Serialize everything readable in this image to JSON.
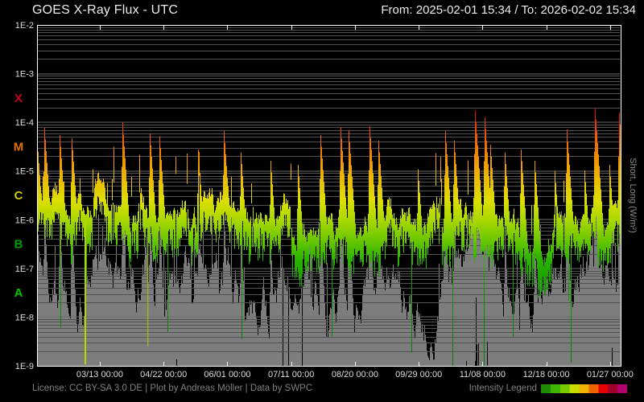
{
  "header": {
    "title": "GOES X-Ray Flux - UTC",
    "range": "From: 2025-02-01 15:34  /  To: 2026-02-02 15:34"
  },
  "right_axis_label": "Short, Long (W/m²)",
  "footer": {
    "license": "License: CC BY-SA 3.0 DE | Plot by Andreas Möller | Data by SWPC",
    "legend_label": "Intensity Legend",
    "legend_colors": [
      "#1e8c00",
      "#3cb400",
      "#78c800",
      "#c8dc00",
      "#f0b400",
      "#f06400",
      "#e60000",
      "#a00028",
      "#b4006e"
    ]
  },
  "chart_data": {
    "type": "area",
    "title": "GOES X-Ray Flux - UTC",
    "x_range_utc": [
      "2025-02-01 15:34",
      "2026-02-02 15:34"
    ],
    "y_scale": "log10",
    "ylim": [
      1e-09,
      0.01
    ],
    "plot_bg": "#000000",
    "frame_color": "#ffffff",
    "grid": {
      "minor_color": "#525252",
      "major_color": "#6e6e6e"
    },
    "y_ticks": {
      "labels": [
        "1E-2",
        "1E-3",
        "1E-4",
        "1E-5",
        "1E-6",
        "1E-7",
        "1E-8",
        "1E-9"
      ],
      "log_values": [
        -2,
        -3,
        -4,
        -5,
        -6,
        -7,
        -8,
        -9
      ]
    },
    "class_bands": [
      {
        "label": "X",
        "color": "#c80020",
        "center_log": -3.5
      },
      {
        "label": "M",
        "color": "#e87000",
        "center_log": -4.5
      },
      {
        "label": "C",
        "color": "#cccc00",
        "center_log": -5.5
      },
      {
        "label": "B",
        "color": "#00a000",
        "center_log": -6.5
      },
      {
        "label": "A",
        "color": "#00c800",
        "center_log": -7.5
      }
    ],
    "x_ticks": {
      "labels": [
        "03/13 00:00",
        "04/22 00:00",
        "06/01 00:00",
        "07/11 00:00",
        "08/20 00:00",
        "09/29 00:00",
        "11/08 00:00",
        "12/18 00:00",
        "01/27 00:00"
      ],
      "fractions": [
        0.1075,
        0.2168,
        0.3261,
        0.4354,
        0.5447,
        0.654,
        0.7633,
        0.8726,
        0.9819
      ]
    },
    "gradient_stops": [
      [
        -2.0,
        "#b4007d"
      ],
      [
        -3.0,
        "#c00040"
      ],
      [
        -3.5,
        "#cc0018"
      ],
      [
        -3.8,
        "#dd1400"
      ],
      [
        -4.2,
        "#ee5000"
      ],
      [
        -4.6,
        "#f08000"
      ],
      [
        -5.0,
        "#f0ac00"
      ],
      [
        -5.6,
        "#dede00"
      ],
      [
        -6.0,
        "#aad800"
      ],
      [
        -6.4,
        "#6ec800"
      ],
      [
        -6.8,
        "#2cb400"
      ],
      [
        -7.5,
        "#0f9600"
      ],
      [
        -9.0,
        "#007800"
      ]
    ],
    "series": [
      {
        "name": "long",
        "render": "intensity_gradient",
        "noise_seed": 42,
        "noise_amp": 0.38,
        "band_thickness": [
          0.3,
          0.85
        ],
        "baseline_keyframes": [
          [
            0,
            -5.82
          ],
          [
            0.05,
            -5.95
          ],
          [
            0.1,
            -5.8
          ],
          [
            0.16,
            -6.05
          ],
          [
            0.22,
            -5.9
          ],
          [
            0.28,
            -6.0
          ],
          [
            0.34,
            -5.85
          ],
          [
            0.4,
            -6.1
          ],
          [
            0.46,
            -5.95
          ],
          [
            0.52,
            -6.05
          ],
          [
            0.58,
            -6.2
          ],
          [
            0.63,
            -6.0
          ],
          [
            0.68,
            -6.1
          ],
          [
            0.73,
            -5.95
          ],
          [
            0.79,
            -6.3
          ],
          [
            0.85,
            -6.45
          ],
          [
            0.9,
            -6.2
          ],
          [
            0.95,
            -6.0
          ],
          [
            1,
            -5.8
          ]
        ]
      },
      {
        "name": "short",
        "render": "solid",
        "color": "#7d7d7d",
        "noise_seed": 1337,
        "noise_amp": 0.62,
        "baseline_keyframes": [
          [
            0,
            -7.0
          ],
          [
            0.06,
            -7.5
          ],
          [
            0.12,
            -6.9
          ],
          [
            0.2,
            -7.3
          ],
          [
            0.28,
            -7.0
          ],
          [
            0.36,
            -7.5
          ],
          [
            0.44,
            -7.2
          ],
          [
            0.52,
            -7.6
          ],
          [
            0.6,
            -7.1
          ],
          [
            0.68,
            -7.4
          ],
          [
            0.76,
            -7.0
          ],
          [
            0.84,
            -7.5
          ],
          [
            0.92,
            -7.2
          ],
          [
            1,
            -6.8
          ]
        ]
      }
    ],
    "flares": [
      [
        0.001,
        -4.6
      ],
      [
        0.012,
        -4.11
      ],
      [
        0.039,
        -4.26
      ],
      [
        0.059,
        -4.33
      ],
      [
        0.146,
        -4.01
      ],
      [
        0.193,
        -4.23
      ],
      [
        0.21,
        -4.29
      ],
      [
        0.276,
        -4.56
      ],
      [
        0.32,
        -4.18
      ],
      [
        0.35,
        -4.62
      ],
      [
        0.401,
        -4.79
      ],
      [
        0.448,
        -4.87
      ],
      [
        0.486,
        -4.26
      ],
      [
        0.521,
        -4.1
      ],
      [
        0.534,
        -4.16
      ],
      [
        0.571,
        -4.08
      ],
      [
        0.585,
        -4.38
      ],
      [
        0.654,
        -4.96
      ],
      [
        0.7,
        -4.18
      ],
      [
        0.716,
        -4.38
      ],
      [
        0.752,
        -3.75
      ],
      [
        0.768,
        -3.9
      ],
      [
        0.778,
        -4.46
      ],
      [
        0.803,
        -4.62
      ],
      [
        0.83,
        -4.56
      ],
      [
        0.854,
        -4.79
      ],
      [
        0.888,
        -5.0
      ],
      [
        0.909,
        -4.15
      ],
      [
        0.939,
        -4.99
      ],
      [
        0.957,
        -3.7
      ],
      [
        0.982,
        -4.87
      ],
      [
        0.9986,
        -3.8
      ]
    ],
    "gaps": [
      {
        "x_frac": 0.0828,
        "from_log": -6.05,
        "to_log": -8.97,
        "color": "#bcd400",
        "width": 2
      },
      {
        "x_frac": 0.19,
        "from_log": -6.1,
        "to_log": -8.6,
        "color": "#a6cc00",
        "width": 1
      }
    ]
  }
}
